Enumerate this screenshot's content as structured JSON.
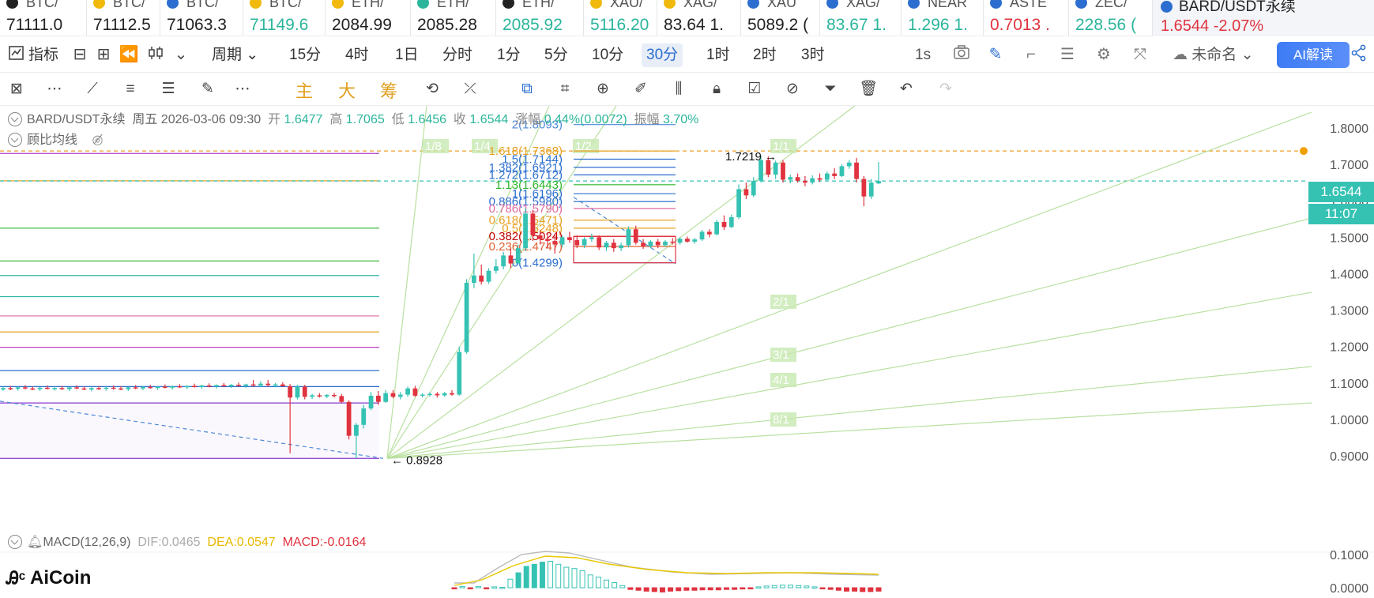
{
  "tickers": [
    {
      "name": "BTC/",
      "price": "71111.0",
      "color": "neu",
      "icon_color": "#222"
    },
    {
      "name": "BTC/",
      "price": "71112.5",
      "color": "neu",
      "icon_color": "#f0b90b"
    },
    {
      "name": "BTC/",
      "price": "71063.3",
      "color": "neu",
      "icon_color": "#2b6ecf"
    },
    {
      "name": "BTC/",
      "price": "71149.6",
      "color": "up",
      "icon_color": "#f0b90b"
    },
    {
      "name": "ETH/",
      "price": "2084.99",
      "color": "neu",
      "icon_color": "#f0b90b"
    },
    {
      "name": "ETH/",
      "price": "2085.28",
      "color": "neu",
      "icon_color": "#2bb59b"
    },
    {
      "name": "ETH/",
      "price": "2085.92",
      "color": "up",
      "icon_color": "#222"
    },
    {
      "name": "XAU/",
      "price": "5116.20",
      "color": "up",
      "icon_color": "#f0b90b"
    },
    {
      "name": "XAG/",
      "price": "83.64  1.",
      "color": "neu",
      "icon_color": "#f0b90b"
    },
    {
      "name": "XAU",
      "price": "5089.2 (",
      "color": "neu",
      "icon_color": "#2b6ecf"
    },
    {
      "name": "XAG/",
      "price": "83.67  1.",
      "color": "up",
      "icon_color": "#2b6ecf"
    },
    {
      "name": "NEAR",
      "price": "1.296  1.",
      "color": "up",
      "icon_color": "#2b6ecf"
    },
    {
      "name": "ASTE",
      "price": "0.7013  .",
      "color": "dn",
      "icon_color": "#2b6ecf"
    },
    {
      "name": "ZEC/",
      "price": "228.56  (",
      "color": "up",
      "icon_color": "#2b6ecf"
    }
  ],
  "active_ticker": {
    "name": "BARD/USDT永续",
    "price": "1.6544  -2.07%"
  },
  "period_bar": {
    "indicators_label": "指标",
    "period_label": "周期",
    "periods": [
      "15分",
      "4时",
      "1日",
      "分时",
      "1分",
      "5分",
      "10分",
      "30分",
      "1时",
      "2时",
      "3时"
    ],
    "selected_period": "30分",
    "interval_label": "1s",
    "layout_name": "未命名",
    "ai_label": "AI解读"
  },
  "draw_bar": {
    "chars": [
      "主",
      "大",
      "筹"
    ]
  },
  "info": {
    "symbol": "BARD/USDT永续",
    "date": "周五 2026-03-06 09:30",
    "open_label": "开",
    "open": "1.6477",
    "high_label": "高",
    "high": "1.7065",
    "low_label": "低",
    "low": "1.6456",
    "close_label": "收",
    "close": "1.6544",
    "change_label": "涨幅",
    "change": "0.44%(0.0072)",
    "amplitude_label": "振幅",
    "amplitude": "3.70%",
    "overlay_label": "顾比均线",
    "macd_label": "MACD(12,26,9)",
    "dif": "DIF:0.0465",
    "dea": "DEA:0.0547",
    "macd": "MACD:-0.0164"
  },
  "price_tag": "1.6544",
  "time_tag": "11:07",
  "logo": "AiCoin",
  "chart_data": {
    "type": "candlestick",
    "price_axis": [
      "1.8000",
      "1.7000",
      "1.6000",
      "1.5000",
      "1.4000",
      "1.3000",
      "1.2000",
      "1.1000",
      "1.0000",
      "0.9000"
    ],
    "macd_axis": [
      "0.1000",
      "0.0000"
    ],
    "low_marker": "0.8928",
    "high_marker": "1.7219",
    "fib_levels": [
      {
        "label": "2(1.8093)",
        "color": "#4b88d6"
      },
      {
        "label": "1.618(1.7368)",
        "color": "#e8a020"
      },
      {
        "label": "1.5(1.7144)",
        "color": "#2b6ecf"
      },
      {
        "label": "1.382(1.6921)",
        "color": "#2b6ecf"
      },
      {
        "label": "1.272(1.6712)",
        "color": "#2b6ecf"
      },
      {
        "label": "1.13(1.6443)",
        "color": "#2bb52b"
      },
      {
        "label": "1(1.6196)",
        "color": "#2b6ecf"
      },
      {
        "label": "0.886(1.5980)",
        "color": "#2b6ecf"
      },
      {
        "label": "0.786(1.5790)",
        "color": "#e06aa0"
      },
      {
        "label": "0.618(1.5471)",
        "color": "#e8a020"
      },
      {
        "label": "0.5(1.5248)",
        "color": "#e8a020"
      },
      {
        "label": "0.382(1.5024)",
        "color": "#c00000"
      },
      {
        "label": "0.236(1.4747)",
        "color": "#e06030"
      },
      {
        "label": "0(1.4299)",
        "color": "#2b6ecf"
      }
    ],
    "fan_labels": [
      "1/8",
      "1/4",
      "1/2",
      "1/1",
      "2/1",
      "3/1",
      "4/1",
      "8/1"
    ],
    "candles": [
      {
        "o": 1.082,
        "h": 1.09,
        "l": 1.078,
        "c": 1.086
      },
      {
        "o": 1.086,
        "h": 1.092,
        "l": 1.08,
        "c": 1.084
      },
      {
        "o": 1.084,
        "h": 1.09,
        "l": 1.079,
        "c": 1.088
      },
      {
        "o": 1.088,
        "h": 1.094,
        "l": 1.082,
        "c": 1.085
      },
      {
        "o": 1.085,
        "h": 1.09,
        "l": 1.08,
        "c": 1.083
      },
      {
        "o": 1.083,
        "h": 1.089,
        "l": 1.078,
        "c": 1.087
      },
      {
        "o": 1.087,
        "h": 1.093,
        "l": 1.082,
        "c": 1.084
      },
      {
        "o": 1.084,
        "h": 1.09,
        "l": 1.079,
        "c": 1.086
      },
      {
        "o": 1.086,
        "h": 1.092,
        "l": 1.081,
        "c": 1.083
      },
      {
        "o": 1.083,
        "h": 1.089,
        "l": 1.078,
        "c": 1.088
      },
      {
        "o": 1.088,
        "h": 1.094,
        "l": 1.083,
        "c": 1.085
      },
      {
        "o": 1.085,
        "h": 1.091,
        "l": 1.08,
        "c": 1.082
      },
      {
        "o": 1.082,
        "h": 1.088,
        "l": 1.077,
        "c": 1.086
      },
      {
        "o": 1.086,
        "h": 1.092,
        "l": 1.081,
        "c": 1.084
      },
      {
        "o": 1.084,
        "h": 1.09,
        "l": 1.079,
        "c": 1.087
      },
      {
        "o": 1.087,
        "h": 1.093,
        "l": 1.082,
        "c": 1.085
      },
      {
        "o": 1.085,
        "h": 1.091,
        "l": 1.08,
        "c": 1.083
      },
      {
        "o": 1.083,
        "h": 1.089,
        "l": 1.078,
        "c": 1.088
      },
      {
        "o": 1.088,
        "h": 1.094,
        "l": 1.083,
        "c": 1.085
      },
      {
        "o": 1.085,
        "h": 1.091,
        "l": 1.08,
        "c": 1.089
      },
      {
        "o": 1.089,
        "h": 1.095,
        "l": 1.084,
        "c": 1.086
      },
      {
        "o": 1.086,
        "h": 1.092,
        "l": 1.081,
        "c": 1.09
      },
      {
        "o": 1.09,
        "h": 1.096,
        "l": 1.085,
        "c": 1.087
      },
      {
        "o": 1.087,
        "h": 1.093,
        "l": 1.082,
        "c": 1.091
      },
      {
        "o": 1.091,
        "h": 1.097,
        "l": 1.086,
        "c": 1.088
      },
      {
        "o": 1.088,
        "h": 1.094,
        "l": 1.083,
        "c": 1.092
      },
      {
        "o": 1.092,
        "h": 1.098,
        "l": 1.087,
        "c": 1.089
      },
      {
        "o": 1.089,
        "h": 1.095,
        "l": 1.084,
        "c": 1.093
      },
      {
        "o": 1.093,
        "h": 1.099,
        "l": 1.088,
        "c": 1.09
      },
      {
        "o": 1.09,
        "h": 1.096,
        "l": 1.085,
        "c": 1.094
      },
      {
        "o": 1.094,
        "h": 1.1,
        "l": 1.089,
        "c": 1.091
      },
      {
        "o": 1.091,
        "h": 1.097,
        "l": 1.086,
        "c": 1.095
      },
      {
        "o": 1.095,
        "h": 1.101,
        "l": 1.09,
        "c": 1.092
      },
      {
        "o": 1.092,
        "h": 1.098,
        "l": 1.087,
        "c": 1.096
      },
      {
        "o": 1.096,
        "h": 1.108,
        "l": 1.09,
        "c": 1.093
      },
      {
        "o": 1.093,
        "h": 1.105,
        "l": 1.088,
        "c": 1.098
      },
      {
        "o": 1.098,
        "h": 1.108,
        "l": 1.09,
        "c": 1.094
      },
      {
        "o": 1.094,
        "h": 1.1,
        "l": 1.088,
        "c": 1.096
      },
      {
        "o": 1.096,
        "h": 1.102,
        "l": 1.09,
        "c": 1.091
      },
      {
        "o": 1.091,
        "h": 1.097,
        "l": 0.907,
        "c": 1.06
      },
      {
        "o": 1.06,
        "h": 1.095,
        "l": 1.055,
        "c": 1.09
      },
      {
        "o": 1.09,
        "h": 1.095,
        "l": 1.055,
        "c": 1.062
      },
      {
        "o": 1.062,
        "h": 1.07,
        "l": 1.056,
        "c": 1.066
      },
      {
        "o": 1.066,
        "h": 1.072,
        "l": 1.06,
        "c": 1.063
      },
      {
        "o": 1.063,
        "h": 1.069,
        "l": 1.058,
        "c": 1.067
      },
      {
        "o": 1.067,
        "h": 1.073,
        "l": 1.06,
        "c": 1.064
      },
      {
        "o": 1.064,
        "h": 1.07,
        "l": 1.045,
        "c": 1.048
      },
      {
        "o": 1.048,
        "h": 1.052,
        "l": 0.945,
        "c": 0.955
      },
      {
        "o": 0.955,
        "h": 0.99,
        "l": 0.893,
        "c": 0.985
      },
      {
        "o": 0.985,
        "h": 1.04,
        "l": 0.975,
        "c": 1.03
      },
      {
        "o": 1.03,
        "h": 1.075,
        "l": 1.025,
        "c": 1.065
      },
      {
        "o": 1.065,
        "h": 1.078,
        "l": 1.04,
        "c": 1.048
      },
      {
        "o": 1.048,
        "h": 1.08,
        "l": 1.045,
        "c": 1.072
      },
      {
        "o": 1.072,
        "h": 1.08,
        "l": 1.058,
        "c": 1.062
      },
      {
        "o": 1.062,
        "h": 1.075,
        "l": 1.055,
        "c": 1.068
      },
      {
        "o": 1.068,
        "h": 1.09,
        "l": 1.062,
        "c": 1.085
      },
      {
        "o": 1.085,
        "h": 1.092,
        "l": 1.062,
        "c": 1.065
      },
      {
        "o": 1.065,
        "h": 1.072,
        "l": 1.06,
        "c": 1.068
      },
      {
        "o": 1.068,
        "h": 1.075,
        "l": 1.062,
        "c": 1.07
      },
      {
        "o": 1.07,
        "h": 1.075,
        "l": 1.06,
        "c": 1.066
      },
      {
        "o": 1.066,
        "h": 1.075,
        "l": 1.062,
        "c": 1.072
      },
      {
        "o": 1.072,
        "h": 1.08,
        "l": 1.065,
        "c": 1.068
      },
      {
        "o": 1.068,
        "h": 1.2,
        "l": 1.065,
        "c": 1.185
      },
      {
        "o": 1.185,
        "h": 1.385,
        "l": 1.18,
        "c": 1.375
      },
      {
        "o": 1.375,
        "h": 1.455,
        "l": 1.36,
        "c": 1.395
      },
      {
        "o": 1.395,
        "h": 1.425,
        "l": 1.37,
        "c": 1.378
      },
      {
        "o": 1.378,
        "h": 1.415,
        "l": 1.372,
        "c": 1.408
      },
      {
        "o": 1.408,
        "h": 1.44,
        "l": 1.4,
        "c": 1.42
      },
      {
        "o": 1.42,
        "h": 1.46,
        "l": 1.412,
        "c": 1.45
      },
      {
        "o": 1.45,
        "h": 1.47,
        "l": 1.415,
        "c": 1.428
      },
      {
        "o": 1.428,
        "h": 1.48,
        "l": 1.425,
        "c": 1.47
      },
      {
        "o": 1.47,
        "h": 1.58,
        "l": 1.462,
        "c": 1.565
      },
      {
        "o": 1.565,
        "h": 1.575,
        "l": 1.49,
        "c": 1.505
      },
      {
        "o": 1.505,
        "h": 1.52,
        "l": 1.48,
        "c": 1.495
      },
      {
        "o": 1.495,
        "h": 1.51,
        "l": 1.47,
        "c": 1.49
      },
      {
        "o": 1.49,
        "h": 1.505,
        "l": 1.455,
        "c": 1.48
      },
      {
        "o": 1.48,
        "h": 1.505,
        "l": 1.472,
        "c": 1.5
      },
      {
        "o": 1.5,
        "h": 1.515,
        "l": 1.485,
        "c": 1.492
      },
      {
        "o": 1.492,
        "h": 1.505,
        "l": 1.47,
        "c": 1.478
      },
      {
        "o": 1.478,
        "h": 1.5,
        "l": 1.47,
        "c": 1.495
      },
      {
        "o": 1.495,
        "h": 1.51,
        "l": 1.488,
        "c": 1.5
      },
      {
        "o": 1.5,
        "h": 1.505,
        "l": 1.465,
        "c": 1.472
      },
      {
        "o": 1.472,
        "h": 1.49,
        "l": 1.462,
        "c": 1.485
      },
      {
        "o": 1.485,
        "h": 1.495,
        "l": 1.46,
        "c": 1.47
      },
      {
        "o": 1.47,
        "h": 1.485,
        "l": 1.462,
        "c": 1.478
      },
      {
        "o": 1.478,
        "h": 1.53,
        "l": 1.472,
        "c": 1.522
      },
      {
        "o": 1.522,
        "h": 1.532,
        "l": 1.48,
        "c": 1.485
      },
      {
        "o": 1.485,
        "h": 1.495,
        "l": 1.468,
        "c": 1.475
      },
      {
        "o": 1.475,
        "h": 1.492,
        "l": 1.47,
        "c": 1.488
      },
      {
        "o": 1.488,
        "h": 1.495,
        "l": 1.47,
        "c": 1.478
      },
      {
        "o": 1.478,
        "h": 1.492,
        "l": 1.474,
        "c": 1.488
      },
      {
        "o": 1.488,
        "h": 1.498,
        "l": 1.48,
        "c": 1.485
      },
      {
        "o": 1.485,
        "h": 1.5,
        "l": 1.48,
        "c": 1.496
      },
      {
        "o": 1.496,
        "h": 1.502,
        "l": 1.485,
        "c": 1.488
      },
      {
        "o": 1.488,
        "h": 1.498,
        "l": 1.482,
        "c": 1.494
      },
      {
        "o": 1.494,
        "h": 1.52,
        "l": 1.49,
        "c": 1.515
      },
      {
        "o": 1.515,
        "h": 1.522,
        "l": 1.5,
        "c": 1.508
      },
      {
        "o": 1.508,
        "h": 1.548,
        "l": 1.505,
        "c": 1.542
      },
      {
        "o": 1.542,
        "h": 1.56,
        "l": 1.52,
        "c": 1.528
      },
      {
        "o": 1.528,
        "h": 1.562,
        "l": 1.525,
        "c": 1.555
      },
      {
        "o": 1.555,
        "h": 1.645,
        "l": 1.55,
        "c": 1.632
      },
      {
        "o": 1.632,
        "h": 1.65,
        "l": 1.605,
        "c": 1.615
      },
      {
        "o": 1.615,
        "h": 1.665,
        "l": 1.61,
        "c": 1.655
      },
      {
        "o": 1.655,
        "h": 1.725,
        "l": 1.65,
        "c": 1.712
      },
      {
        "o": 1.712,
        "h": 1.722,
        "l": 1.665,
        "c": 1.672
      },
      {
        "o": 1.672,
        "h": 1.71,
        "l": 1.66,
        "c": 1.705
      },
      {
        "o": 1.705,
        "h": 1.712,
        "l": 1.65,
        "c": 1.658
      },
      {
        "o": 1.658,
        "h": 1.672,
        "l": 1.648,
        "c": 1.665
      },
      {
        "o": 1.665,
        "h": 1.675,
        "l": 1.65,
        "c": 1.655
      },
      {
        "o": 1.655,
        "h": 1.668,
        "l": 1.64,
        "c": 1.65
      },
      {
        "o": 1.65,
        "h": 1.67,
        "l": 1.645,
        "c": 1.662
      },
      {
        "o": 1.662,
        "h": 1.675,
        "l": 1.652,
        "c": 1.658
      },
      {
        "o": 1.658,
        "h": 1.68,
        "l": 1.655,
        "c": 1.675
      },
      {
        "o": 1.675,
        "h": 1.69,
        "l": 1.66,
        "c": 1.668
      },
      {
        "o": 1.668,
        "h": 1.7,
        "l": 1.665,
        "c": 1.695
      },
      {
        "o": 1.695,
        "h": 1.712,
        "l": 1.688,
        "c": 1.705
      },
      {
        "o": 1.705,
        "h": 1.718,
        "l": 1.65,
        "c": 1.66
      },
      {
        "o": 1.66,
        "h": 1.668,
        "l": 1.585,
        "c": 1.612
      },
      {
        "o": 1.612,
        "h": 1.66,
        "l": 1.605,
        "c": 1.65
      },
      {
        "o": 1.6477,
        "h": 1.7065,
        "l": 1.6456,
        "c": 1.6544
      }
    ],
    "macd_bars": [
      -0.002,
      0.003,
      -0.002,
      0.003,
      -0.002,
      0.002,
      0.001,
      0.02,
      0.035,
      0.05,
      0.055,
      0.06,
      0.062,
      0.055,
      0.048,
      0.045,
      0.04,
      0.03,
      0.025,
      0.018,
      0.012,
      0.005,
      -0.004,
      -0.006,
      -0.008,
      -0.009,
      -0.01,
      -0.008,
      -0.007,
      -0.006,
      -0.006,
      -0.005,
      -0.005,
      -0.005,
      -0.004,
      -0.004,
      -0.003,
      -0.002,
      0.002,
      0.004,
      0.005,
      0.006,
      0.006,
      0.005,
      0.004,
      0.002,
      -0.002,
      -0.004,
      -0.006,
      -0.008,
      -0.008,
      -0.009,
      -0.009,
      -0.008
    ]
  }
}
